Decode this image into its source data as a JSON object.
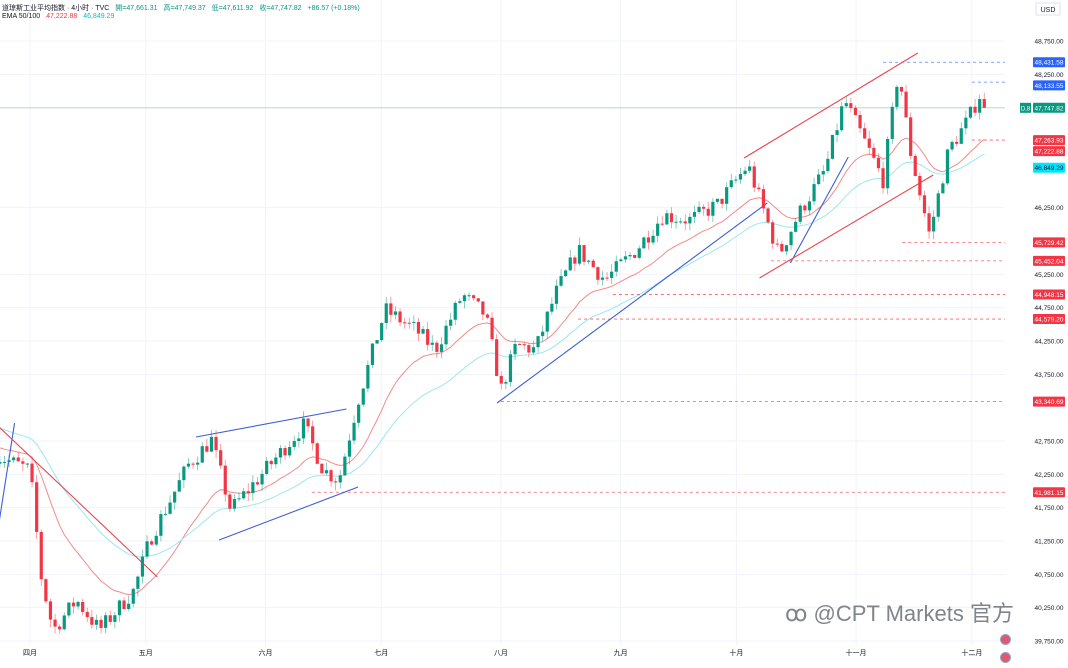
{
  "header": {
    "symbol": "道琼斯工业平均指数 · 4小时 · TVC",
    "open": "開=47,661.31",
    "high": "高=47,749.37",
    "low": "低=47,611.92",
    "close": "收=47,747.82",
    "change": "+86.57 (+0.18%)",
    "ema_label": "EMA 50/100",
    "ema50_value": "47,222.88",
    "ema100_value": "46,849.29"
  },
  "currency": "USD",
  "watermark": "@CPT Markets 官方",
  "colors": {
    "up": "#089981",
    "down": "#f23645",
    "ema50": "#f28b8b",
    "ema100": "#9be7ef",
    "trend_blue": "#3d5fd6",
    "trend_red": "#e8474f",
    "level_red": "#f23645",
    "level_blue": "#2962ff",
    "last_price": "#089981",
    "ema100_label": "#00e5ff"
  },
  "chart_data": {
    "type": "candlestick",
    "title": "道琼斯工业平均指数 · 4小时 · TVC",
    "ylim": [
      39500,
      49000
    ],
    "y_ticks": [
      "48,750.00",
      "48,250.00",
      "46,250.00",
      "45,250.00",
      "44,750.00",
      "44,250.00",
      "43,750.00",
      "42,750.00",
      "42,250.00",
      "41,750.00",
      "41,250.00",
      "40,750.00",
      "40,250.00",
      "39,750.00"
    ],
    "y_tick_values": [
      48750,
      48250,
      46250,
      45250,
      44750,
      44250,
      43750,
      42750,
      42250,
      41750,
      41250,
      40750,
      40250,
      39750
    ],
    "x_ticks": [
      {
        "label": "四月",
        "date": "2025-04-01"
      },
      {
        "label": "五月",
        "date": "2025-05-01"
      },
      {
        "label": "六月",
        "date": "2025-06-01"
      },
      {
        "label": "七月",
        "date": "2025-07-01"
      },
      {
        "label": "八月",
        "date": "2025-08-01"
      },
      {
        "label": "九月",
        "date": "2025-09-01"
      },
      {
        "label": "十月",
        "date": "2025-10-01"
      },
      {
        "label": "十一月",
        "date": "2025-11-01"
      },
      {
        "label": "十二月",
        "date": "2025-12-01"
      }
    ],
    "approx_close_path": [
      [
        "2025-03-23",
        42540
      ],
      [
        "2025-04-01",
        42315
      ],
      [
        "2025-04-04",
        40665
      ],
      [
        "2025-04-07",
        39915
      ],
      [
        "2025-04-13",
        40365
      ],
      [
        "2025-04-19",
        39915
      ],
      [
        "2025-04-28",
        40515
      ],
      [
        "2025-05-02",
        41265
      ],
      [
        "2025-05-12",
        42390
      ],
      [
        "2025-05-18",
        42765
      ],
      [
        "2025-05-23",
        41715
      ],
      [
        "2025-06-01",
        42315
      ],
      [
        "2025-06-11",
        42990
      ],
      [
        "2025-06-16",
        42315
      ],
      [
        "2025-06-20",
        42165
      ],
      [
        "2025-06-25",
        43365
      ],
      [
        "2025-07-02",
        44715
      ],
      [
        "2025-07-10",
        44415
      ],
      [
        "2025-07-15",
        44115
      ],
      [
        "2025-07-22",
        44940
      ],
      [
        "2025-07-28",
        44640
      ],
      [
        "2025-08-01",
        43515
      ],
      [
        "2025-08-05",
        44190
      ],
      [
        "2025-08-10",
        44115
      ],
      [
        "2025-08-15",
        44940
      ],
      [
        "2025-08-21",
        45615
      ],
      [
        "2025-08-28",
        45165
      ],
      [
        "2025-09-05",
        45615
      ],
      [
        "2025-09-12",
        46140
      ],
      [
        "2025-09-19",
        46065
      ],
      [
        "2025-09-26",
        46290
      ],
      [
        "2025-10-04",
        46890
      ],
      [
        "2025-10-12",
        45540
      ],
      [
        "2025-10-17",
        46140
      ],
      [
        "2025-10-24",
        46815
      ],
      [
        "2025-10-29",
        47865
      ],
      [
        "2025-11-03",
        47265
      ],
      [
        "2025-11-08",
        46665
      ],
      [
        "2025-11-12",
        48315
      ],
      [
        "2025-11-15",
        47115
      ],
      [
        "2025-11-20",
        45840
      ],
      [
        "2025-11-25",
        47115
      ],
      [
        "2025-11-30",
        47565
      ],
      [
        "2025-12-03",
        47940
      ],
      [
        "2025-12-05",
        47748
      ]
    ],
    "series": [
      {
        "name": "EMA 50",
        "last": 47222.88
      },
      {
        "name": "EMA 100",
        "last": 46849.29
      }
    ],
    "last_price": {
      "value": 47747.82,
      "label": "47,747.82",
      "countdown": "D,8"
    },
    "levels": [
      {
        "value": 48431.58,
        "label": "48,431.58",
        "from": "2025-11-08",
        "color": "blue"
      },
      {
        "value": 48133.55,
        "label": "48,133.55",
        "from": "2025-12-01",
        "color": "blue"
      },
      {
        "value": 47263.93,
        "label": "47,263.93",
        "from": "2025-12-01",
        "color": "red"
      },
      {
        "value": 45729.42,
        "label": "45,729.42",
        "from": "2025-11-13",
        "color": "red"
      },
      {
        "value": 45452.04,
        "label": "45,452.04",
        "from": "2025-10-10",
        "color": "red"
      },
      {
        "value": 44948.15,
        "label": "44,948.15",
        "from": "2025-08-30",
        "color": "red"
      },
      {
        "value": 44579.2,
        "label": "44,579.20",
        "from": "2025-08-21",
        "color": "red"
      },
      {
        "value": 43340.69,
        "label": "43,340.69",
        "from": "2025-08-01",
        "color": "red"
      },
      {
        "value": 41981.15,
        "label": "41,981.15",
        "from": "2025-06-13",
        "color": "red"
      }
    ],
    "ema_labels": [
      {
        "value": 47222.88,
        "label": "47,222.88",
        "color": "red"
      },
      {
        "value": 46849.29,
        "label": "46,849.29",
        "color": "cyan"
      }
    ],
    "trendlines": [
      {
        "from": [
          "2025-03-24",
          41535
        ],
        "to": [
          "2025-03-28",
          43020
        ],
        "color": "blue"
      },
      {
        "from": [
          "2025-03-24",
          42960
        ],
        "to": [
          "2025-05-04",
          40710
        ],
        "color": "red"
      },
      {
        "from": [
          "2025-05-14",
          42810
        ],
        "to": [
          "2025-06-22",
          43230
        ],
        "color": "blue"
      },
      {
        "from": [
          "2025-05-20",
          41265
        ],
        "to": [
          "2025-06-25",
          42060
        ],
        "color": "blue"
      },
      {
        "from": [
          "2025-07-31",
          43320
        ],
        "to": [
          "2025-10-09",
          46320
        ],
        "color": "blue"
      },
      {
        "from": [
          "2025-10-15",
          45420
        ],
        "to": [
          "2025-10-30",
          47010
        ],
        "color": "blue"
      },
      {
        "from": [
          "2025-10-03",
          46995
        ],
        "to": [
          "2025-11-17",
          48570
        ],
        "color": "red"
      },
      {
        "from": [
          "2025-10-07",
          45195
        ],
        "to": [
          "2025-11-21",
          46740
        ],
        "color": "red"
      }
    ]
  }
}
